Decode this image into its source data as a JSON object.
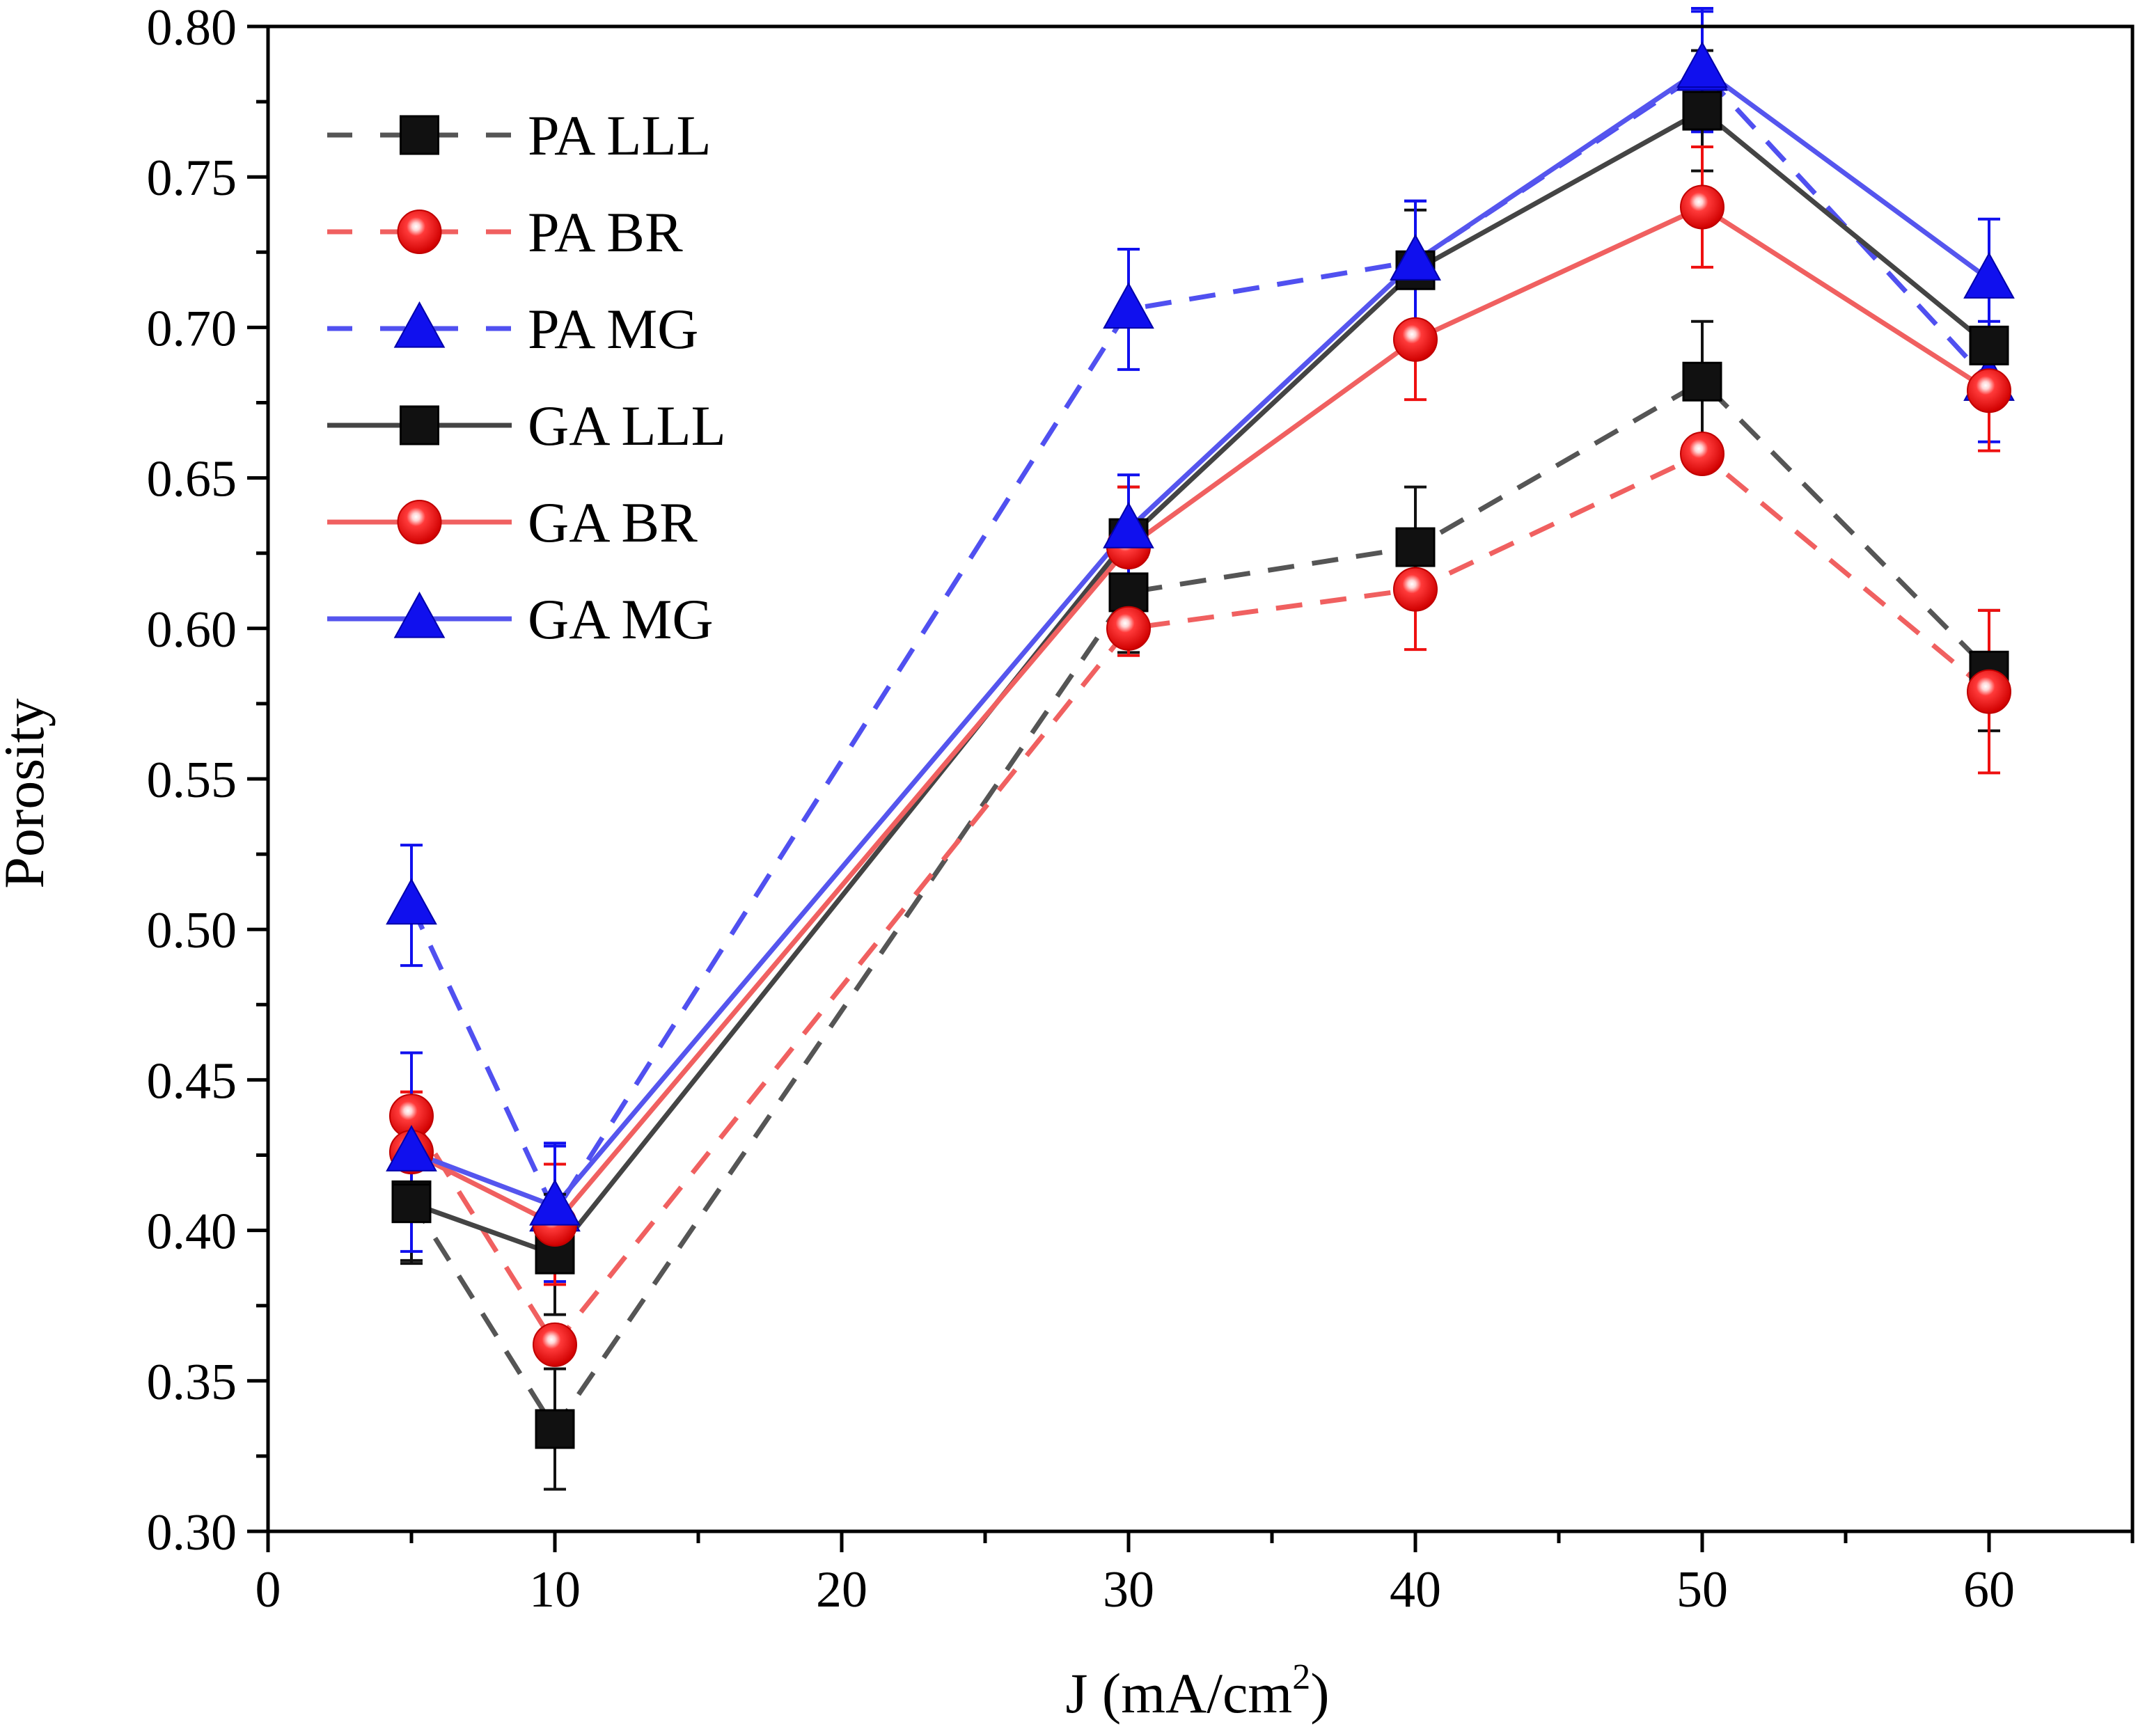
{
  "chart_data": {
    "type": "line",
    "title": "",
    "xlabel": "J (mA/cm",
    "xlabel_sup": "2",
    "xlabel_end": ")",
    "ylabel": "Porosity",
    "xlim": [
      0,
      65
    ],
    "ylim": [
      0.3,
      0.8
    ],
    "x_ticks": [
      0,
      10,
      20,
      30,
      40,
      50,
      60
    ],
    "x_tick_labels": [
      "0",
      "10",
      "20",
      "30",
      "40",
      "50",
      "60"
    ],
    "y_ticks": [
      0.3,
      0.35,
      0.4,
      0.45,
      0.5,
      0.55,
      0.6,
      0.65,
      0.7,
      0.75,
      0.8
    ],
    "y_tick_labels": [
      "0.30",
      "0.35",
      "0.40",
      "0.45",
      "0.50",
      "0.55",
      "0.60",
      "0.65",
      "0.70",
      "0.75",
      "0.80"
    ],
    "grid": false,
    "legend_position": "top-left",
    "x": [
      5,
      10,
      30,
      40,
      50,
      60
    ],
    "series": [
      {
        "name": "PA LLL",
        "color": "#555555",
        "dashed": true,
        "marker": "square",
        "values": [
          0.41,
          0.334,
          0.612,
          0.627,
          0.682,
          0.586
        ],
        "errors": [
          0.02,
          0.02,
          0.02,
          0.02,
          0.02,
          0.02
        ]
      },
      {
        "name": "PA BR",
        "color": "#f06060",
        "dashed": true,
        "marker": "circle",
        "values": [
          0.438,
          0.362,
          0.6,
          0.613,
          0.658,
          0.579
        ],
        "errors": [
          0.008,
          0.004,
          0.009,
          0.02,
          0.003,
          0.027
        ]
      },
      {
        "name": "PA MG",
        "color": "#5050f0",
        "dashed": true,
        "marker": "triangle",
        "values": [
          0.508,
          0.406,
          0.706,
          0.722,
          0.785,
          0.682
        ],
        "errors": [
          0.02,
          0.023,
          0.02,
          0.02,
          0.02,
          0.02
        ]
      },
      {
        "name": "GA LLL",
        "color": "#444444",
        "dashed": false,
        "marker": "square",
        "values": [
          0.409,
          0.392,
          0.63,
          0.719,
          0.772,
          0.694
        ],
        "errors": [
          0.02,
          0.02,
          0.017,
          0.02,
          0.02,
          0.02
        ]
      },
      {
        "name": "GA BR",
        "color": "#f06060",
        "dashed": false,
        "marker": "circle",
        "values": [
          0.426,
          0.402,
          0.627,
          0.696,
          0.74,
          0.679
        ],
        "errors": [
          0.02,
          0.02,
          0.02,
          0.02,
          0.02,
          0.02
        ]
      },
      {
        "name": "GA MG",
        "color": "#5555ee",
        "dashed": false,
        "marker": "triangle",
        "values": [
          0.426,
          0.408,
          0.633,
          0.722,
          0.786,
          0.716
        ],
        "errors": [
          0.033,
          0.02,
          0.018,
          0.02,
          0.02,
          0.02
        ]
      }
    ],
    "marker_fill": {
      "square": "#111111",
      "circle": "#ee1010",
      "triangle": "#1010ee"
    },
    "errorbar_colors": {
      "square": "#111111",
      "circle": "#ee1010",
      "triangle": "#1010ee"
    }
  }
}
